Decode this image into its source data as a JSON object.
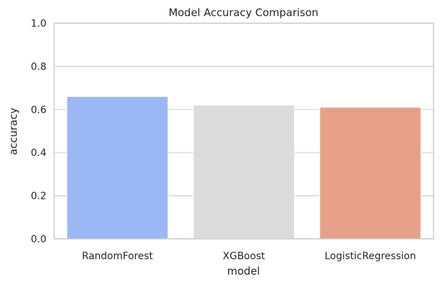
{
  "chart_data": {
    "type": "bar",
    "title": "Model Accuracy Comparison",
    "xlabel": "model",
    "ylabel": "accuracy",
    "categories": [
      "RandomForest",
      "XGBoost",
      "LogisticRegression"
    ],
    "values": [
      0.66,
      0.62,
      0.61
    ],
    "colors": [
      "#9bb7f5",
      "#dcdcdc",
      "#e6a088"
    ],
    "ylim": [
      0,
      1.0
    ],
    "yticks": [
      "0.0",
      "0.2",
      "0.4",
      "0.6",
      "0.8",
      "1.0"
    ],
    "grid": true,
    "grid_axis": "y",
    "grid_color": "#d0d0d0",
    "spine_color": "#cccccc",
    "legend": false
  }
}
